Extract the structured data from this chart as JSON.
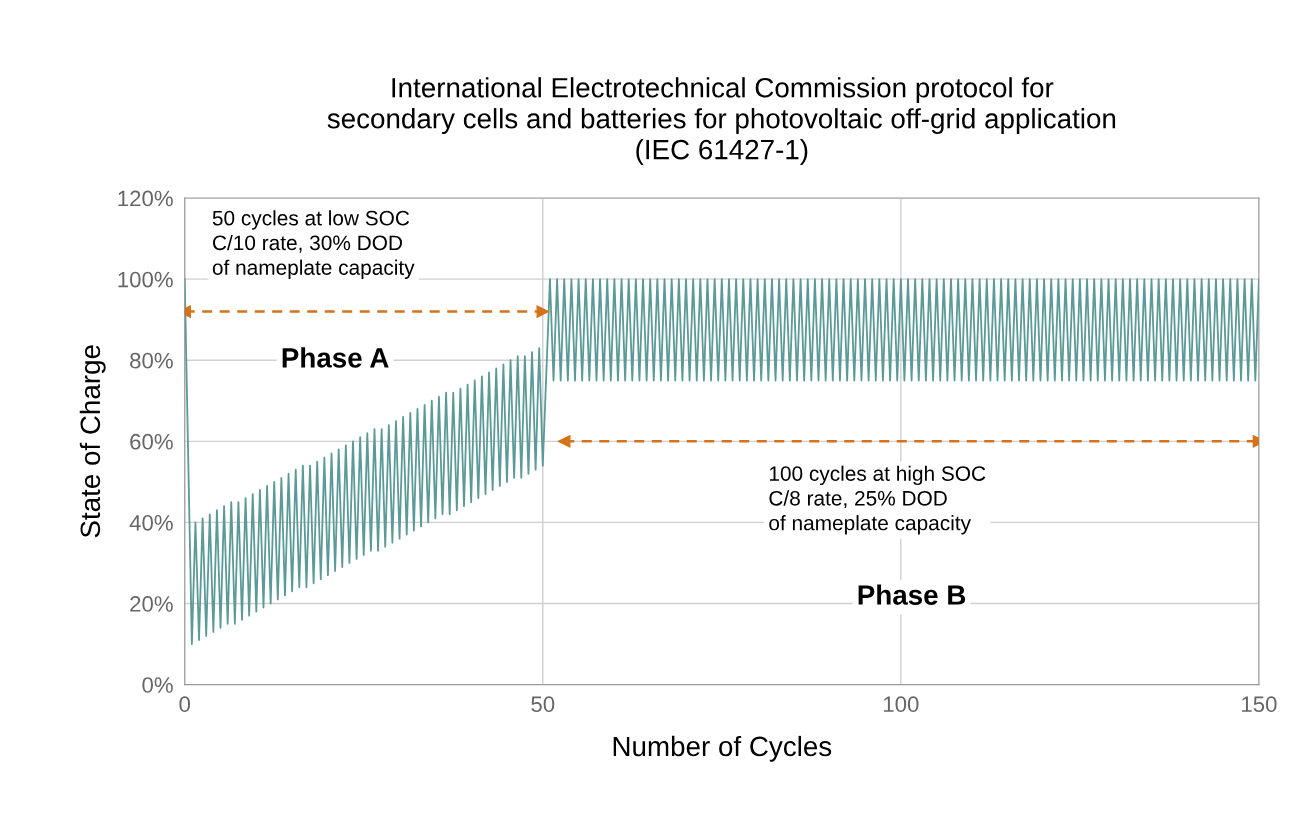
{
  "chart_data": {
    "type": "line",
    "title": "International Electrotechnical Commission protocol for\nsecondary cells and batteries for photovoltaic off-grid application\n(IEC 61427-1)",
    "xlabel": "Number of Cycles",
    "ylabel": "State of Charge",
    "xlim": [
      0,
      150
    ],
    "xticks": [
      0,
      50,
      100,
      150
    ],
    "ylim": [
      0,
      120
    ],
    "yticks": [
      {
        "value": 0,
        "label": "0%"
      },
      {
        "value": 20,
        "label": "20%"
      },
      {
        "value": 40,
        "label": "40%"
      },
      {
        "value": 60,
        "label": "60%"
      },
      {
        "value": 80,
        "label": "80%"
      },
      {
        "value": 100,
        "label": "100%"
      },
      {
        "value": 120,
        "label": "120%"
      }
    ],
    "grid": true,
    "legend": false,
    "annotations": [
      "50 cycles at low SOC\nC/10 rate, 30% DOD\nof nameplate capacity",
      "Phase A",
      "100 cycles at high SOC\nC/8 rate, 25% DOD\nof nameplate capacity",
      "Phase B"
    ],
    "series": [
      {
        "color": "#5b9a98",
        "marker": "none",
        "line_style": "solid",
        "x": [
          0,
          1,
          1.5,
          2,
          2.5,
          3,
          3.5,
          4,
          4.5,
          5,
          5.5,
          6,
          6.5,
          7,
          7.5,
          8,
          8.5,
          9,
          9.5,
          10,
          10.5,
          11,
          11.5,
          12,
          12.5,
          13,
          13.5,
          14,
          14.5,
          15,
          15.5,
          16,
          16.5,
          17,
          17.5,
          18,
          18.5,
          19,
          19.5,
          20,
          20.5,
          21,
          21.5,
          22,
          22.5,
          23,
          23.5,
          24,
          24.5,
          25,
          25.5,
          26,
          26.5,
          27,
          27.5,
          28,
          28.5,
          29,
          29.5,
          30,
          30.5,
          31,
          31.5,
          32,
          32.5,
          33,
          33.5,
          34,
          34.5,
          35,
          35.5,
          36,
          36.5,
          37,
          37.5,
          38,
          38.5,
          39,
          39.5,
          40,
          40.5,
          41,
          41.5,
          42,
          42.5,
          43,
          43.5,
          44,
          44.5,
          45,
          45.5,
          46,
          46.5,
          47,
          47.5,
          48,
          48.5,
          49,
          49.5,
          50,
          51,
          51.5,
          52,
          52.5,
          53,
          53.5,
          54,
          54.5,
          55,
          55.5,
          56,
          56.5,
          57,
          57.5,
          58,
          58.5,
          59,
          59.5,
          60,
          60.5,
          61,
          61.5,
          62,
          62.5,
          63,
          63.5,
          64,
          64.5,
          65,
          65.5,
          66,
          66.5,
          67,
          67.5,
          68,
          68.5,
          69,
          69.5,
          70,
          70.5,
          71,
          71.5,
          72,
          72.5,
          73,
          73.5,
          74,
          74.5,
          75,
          75.5,
          76,
          76.5,
          77,
          77.5,
          78,
          78.5,
          79,
          79.5,
          80,
          80.5,
          81,
          81.5,
          82,
          82.5,
          83,
          83.5,
          84,
          84.5,
          85,
          85.5,
          86,
          86.5,
          87,
          87.5,
          88,
          88.5,
          89,
          89.5,
          90,
          90.5,
          91,
          91.5,
          92,
          92.5,
          93,
          93.5,
          94,
          94.5,
          95,
          95.5,
          96,
          96.5,
          97,
          97.5,
          98,
          98.5,
          99,
          99.5,
          100,
          100.5,
          101,
          101.5,
          102,
          102.5,
          103,
          103.5,
          104,
          104.5,
          105,
          105.5,
          106,
          106.5,
          107,
          107.5,
          108,
          108.5,
          109,
          109.5,
          110,
          110.5,
          111,
          111.5,
          112,
          112.5,
          113,
          113.5,
          114,
          114.5,
          115,
          115.5,
          116,
          116.5,
          117,
          117.5,
          118,
          118.5,
          119,
          119.5,
          120,
          120.5,
          121,
          121.5,
          122,
          122.5,
          123,
          123.5,
          124,
          124.5,
          125,
          125.5,
          126,
          126.5,
          127,
          127.5,
          128,
          128.5,
          129,
          129.5,
          130,
          130.5,
          131,
          131.5,
          132,
          132.5,
          133,
          133.5,
          134,
          134.5,
          135,
          135.5,
          136,
          136.5,
          137,
          137.5,
          138,
          138.5,
          139,
          139.5,
          140,
          140.5,
          141,
          141.5,
          142,
          142.5,
          143,
          143.5,
          144,
          144.5,
          145,
          145.5,
          146,
          146.5,
          147,
          147.5,
          148,
          148.5,
          149,
          149.5,
          150
        ],
        "values": [
          100,
          10,
          40,
          11,
          41,
          12,
          42,
          13,
          43,
          14,
          44,
          15,
          45,
          15,
          45,
          16,
          46,
          17,
          47,
          18,
          48,
          19,
          49,
          20,
          50,
          21,
          51,
          22,
          52,
          23,
          53,
          24,
          54,
          24,
          54,
          25,
          55,
          26,
          56,
          27,
          57,
          28,
          58,
          29,
          59,
          30,
          60,
          31,
          61,
          32,
          62,
          33,
          63,
          33,
          63,
          34,
          64,
          35,
          65,
          36,
          66,
          37,
          67,
          38,
          68,
          39,
          69,
          40,
          70,
          41,
          71,
          42,
          72,
          42,
          72,
          43,
          73,
          44,
          74,
          45,
          75,
          46,
          76,
          47,
          77,
          48,
          78,
          49,
          79,
          50,
          80,
          51,
          81,
          51,
          81,
          52,
          82,
          53,
          83,
          54,
          100,
          75,
          100,
          75,
          100,
          75,
          100,
          75,
          100,
          75,
          100,
          75,
          100,
          75,
          100,
          75,
          100,
          75,
          100,
          75,
          100,
          75,
          100,
          75,
          100,
          75,
          100,
          75,
          100,
          75,
          100,
          75,
          100,
          75,
          100,
          75,
          100,
          75,
          100,
          75,
          100,
          75,
          100,
          75,
          100,
          75,
          100,
          75,
          100,
          75,
          100,
          75,
          100,
          75,
          100,
          75,
          100,
          75,
          100,
          75,
          100,
          75,
          100,
          75,
          100,
          75,
          100,
          75,
          100,
          75,
          100,
          75,
          100,
          75,
          100,
          75,
          100,
          75,
          100,
          75,
          100,
          75,
          100,
          75,
          100,
          75,
          100,
          75,
          100,
          75,
          100,
          75,
          100,
          75,
          100,
          75,
          100,
          75,
          100,
          75,
          100,
          75,
          100,
          75,
          100,
          75,
          100,
          75,
          100,
          75,
          100,
          75,
          100,
          75,
          100,
          75,
          100,
          75,
          100,
          75,
          100,
          75,
          100,
          75,
          100,
          75,
          100,
          75,
          100,
          75,
          100,
          75,
          100,
          75,
          100,
          75,
          100,
          75,
          100,
          75,
          100,
          75,
          100,
          75,
          100,
          75,
          100,
          75,
          100,
          75,
          100,
          75,
          100,
          75,
          100,
          75,
          100,
          75,
          100,
          75,
          100,
          75,
          100,
          75,
          100,
          75,
          100,
          75,
          100,
          75,
          100,
          75,
          100,
          75,
          100,
          75,
          100,
          75,
          100,
          75,
          100,
          75,
          100,
          75,
          100,
          75,
          100,
          75,
          100,
          75,
          100,
          75,
          100,
          75,
          100,
          75,
          100,
          75,
          100
        ]
      },
      {
        "color": "#d4731c",
        "marker": "triangle",
        "line_style": "dashed",
        "x": [
          0,
          50
        ],
        "values": [
          92,
          92
        ]
      },
      {
        "color": "#d4731c",
        "marker": "triangle",
        "line_style": "dashed",
        "x": [
          53,
          150
        ],
        "values": [
          60,
          60
        ]
      }
    ]
  }
}
